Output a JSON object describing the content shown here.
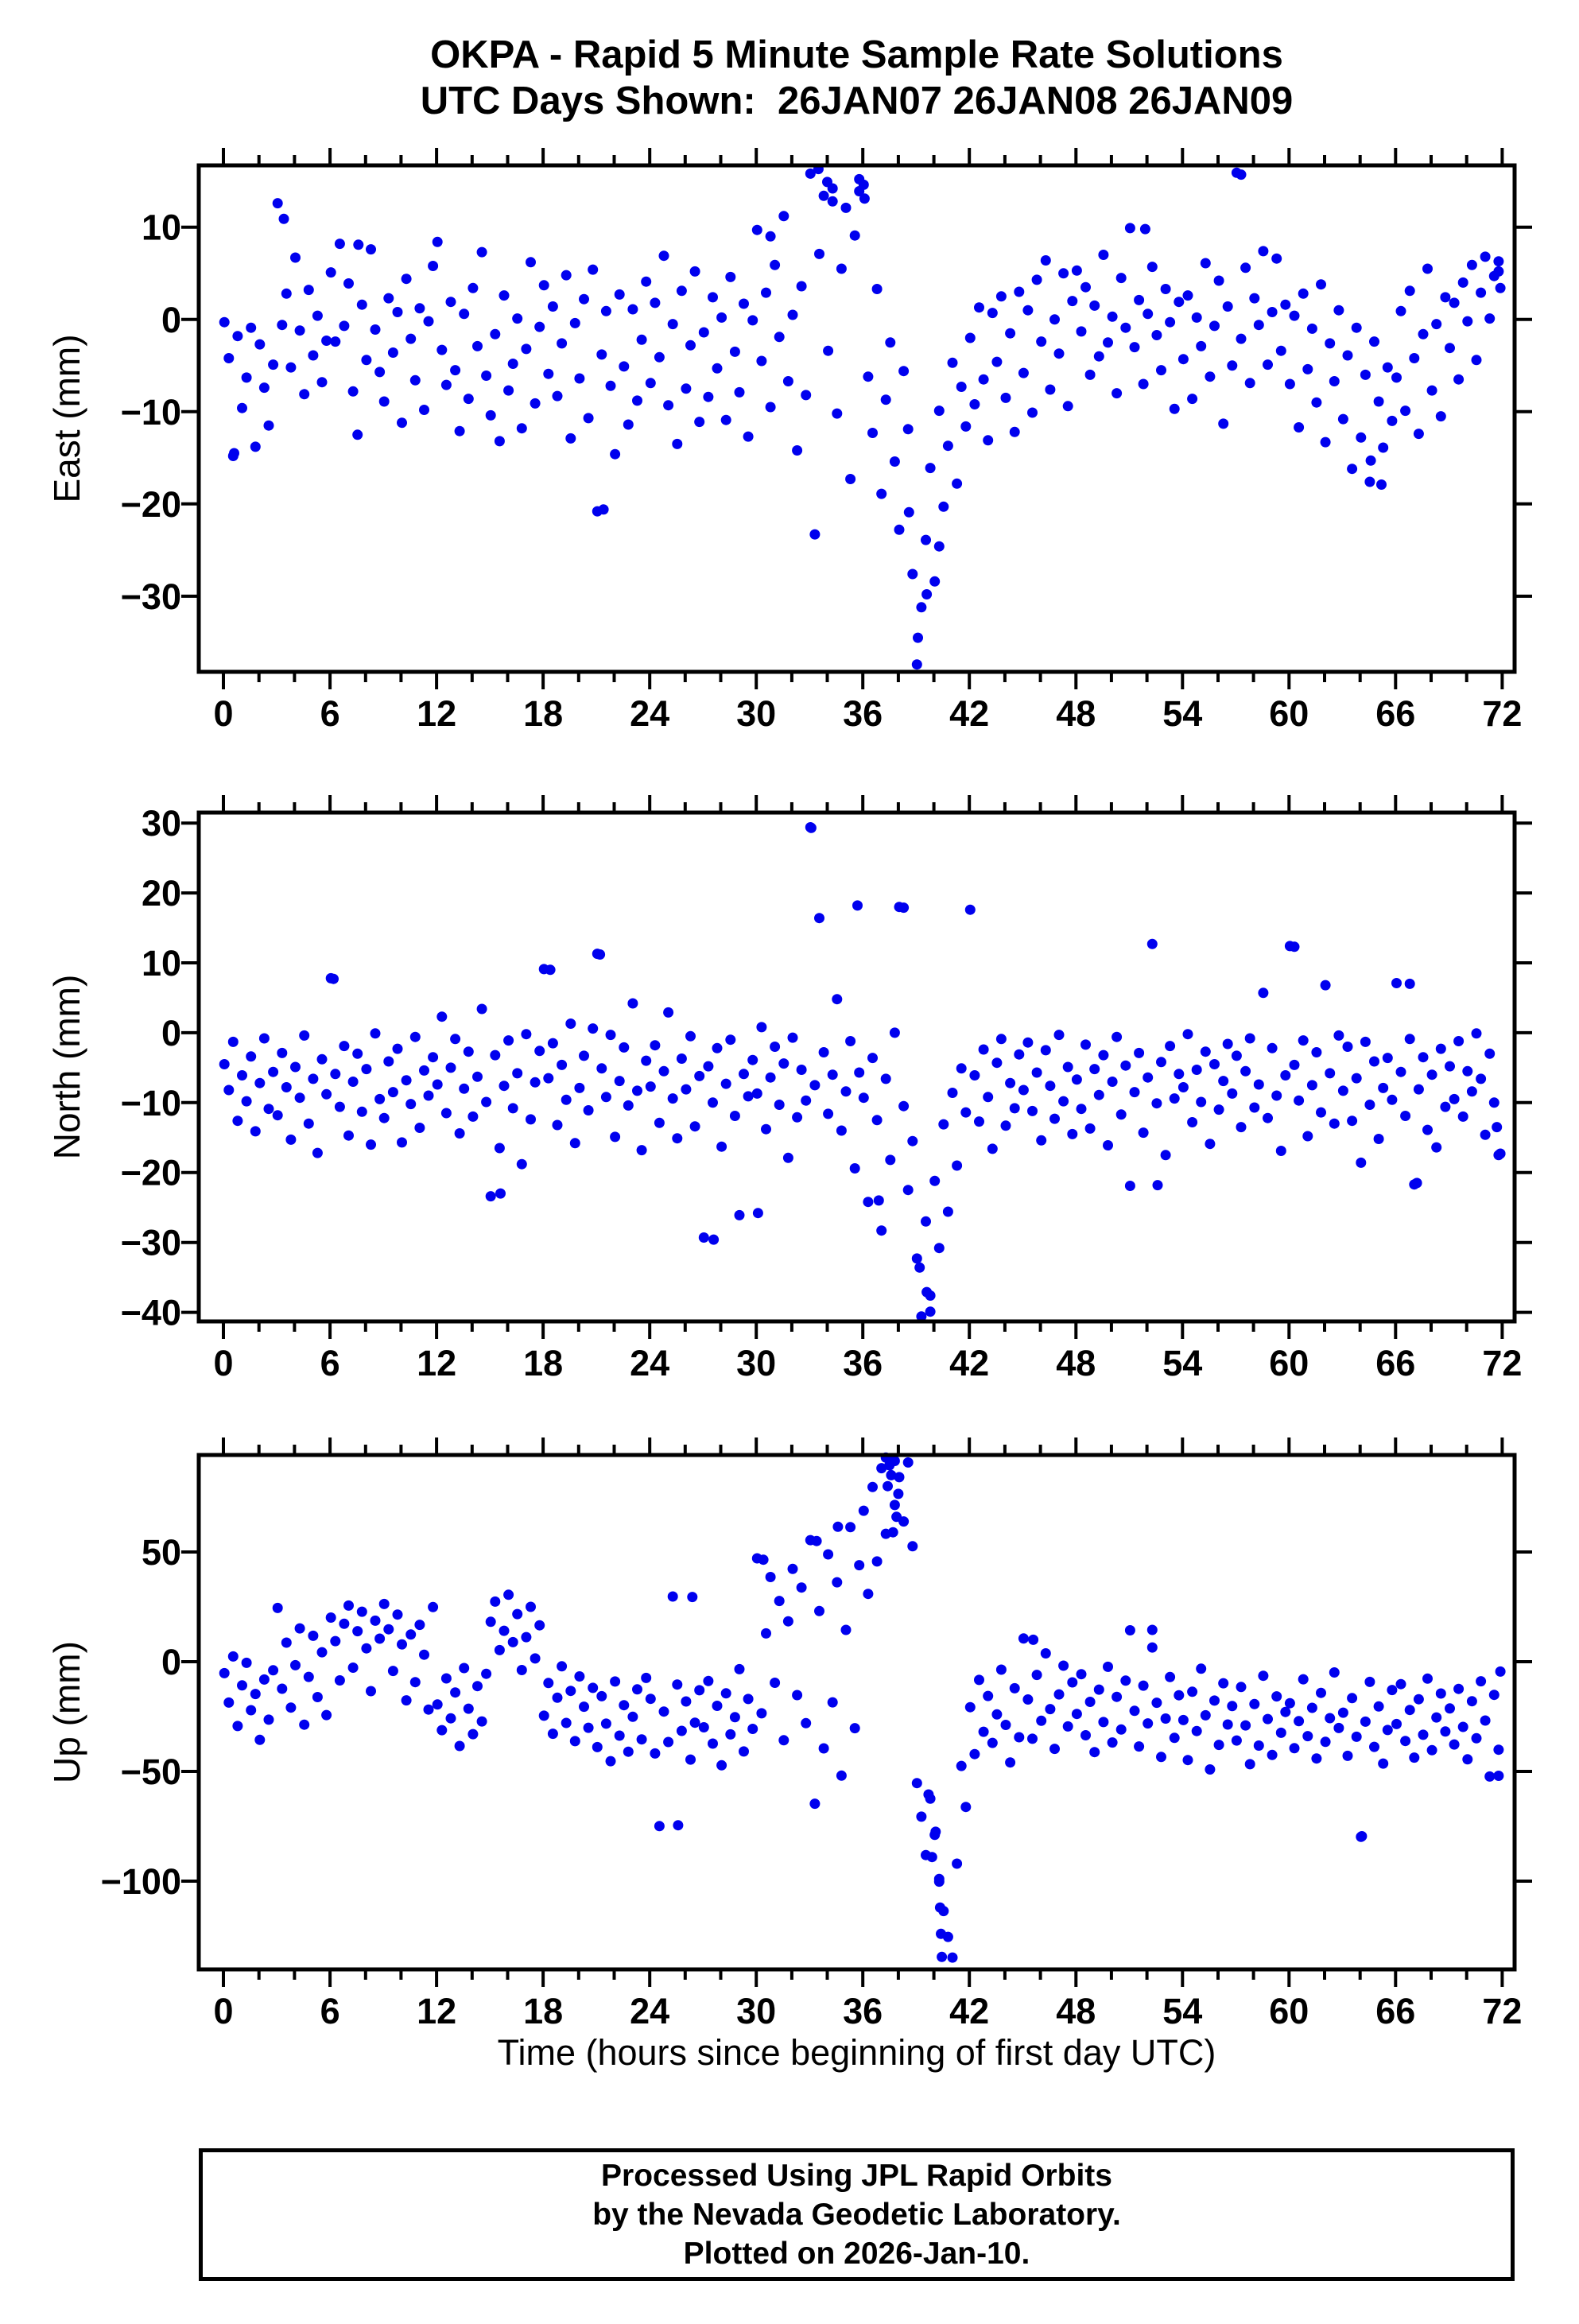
{
  "title": {
    "line1": "OKPA - Rapid 5 Minute Sample Rate Solutions",
    "line2": "UTC Days Shown:  26JAN07 26JAN08 26JAN09"
  },
  "footer": {
    "line1": "Processed Using JPL Rapid Orbits",
    "line2": "by the Nevada Geodetic Laboratory.",
    "line3": "Plotted on 2026-Jan-10."
  },
  "style": {
    "point_color": "#0000EE",
    "frame_color": "#000000",
    "point_radius": 6.5
  },
  "x_axis": {
    "label": "Time (hours since beginning of first day UTC)",
    "ticks": [
      0,
      6,
      12,
      18,
      24,
      30,
      36,
      42,
      48,
      54,
      60,
      66,
      72
    ],
    "tick_labels": [
      "0",
      "6",
      "12",
      "18",
      "24",
      "30",
      "36",
      "42",
      "48",
      "54",
      "60",
      "66",
      "72"
    ],
    "minor_step": 2,
    "lim": [
      -1.39,
      72.7
    ]
  },
  "chart_data": [
    {
      "type": "scatter",
      "name": "east",
      "ylabel": "East (mm)",
      "y_ticks": [
        10,
        0,
        -10,
        -20,
        -30
      ],
      "y_tick_labels": [
        "10",
        "0",
        "−10",
        "−20",
        "−30"
      ],
      "ylim": [
        -38.2,
        16.7
      ],
      "x_start": 0.05,
      "x_step": 0.25,
      "y": [
        -0.3,
        -4.2,
        -14.8,
        -1.8,
        -9.6,
        -6.3,
        -0.9,
        -13.8,
        -2.7,
        -7.4,
        -11.5,
        -4.9,
        12.6,
        -0.6,
        2.8,
        -5.2,
        6.7,
        -1.2,
        -8.1,
        3.2,
        -3.9,
        0.4,
        -6.8,
        -2.3,
        5.1,
        -2.4,
        8.2,
        -0.7,
        3.9,
        -7.8,
        -12.5,
        1.6,
        -4.4,
        7.6,
        -1.1,
        -5.7,
        -8.9,
        2.3,
        -3.6,
        0.8,
        -11.2,
        4.4,
        -2.1,
        -6.6,
        1.2,
        -9.8,
        -0.2,
        5.8,
        8.4,
        -3.3,
        -7.1,
        1.9,
        -5.5,
        -12.1,
        0.6,
        -8.6,
        3.4,
        -2.9,
        7.3,
        -6.1,
        -10.4,
        -1.6,
        -13.2,
        2.6,
        -7.7,
        -4.8,
        0.1,
        -11.8,
        -3.2,
        6.2,
        -9.1,
        -0.8,
        3.7,
        -5.9,
        1.4,
        -8.3,
        -2.6,
        4.8,
        -12.9,
        -0.4,
        -6.4,
        2.2,
        -10.7,
        5.4,
        -20.8,
        -3.8,
        0.9,
        -7.2,
        -14.6,
        2.7,
        -5.1,
        -11.4,
        1.1,
        -8.8,
        -2.2,
        4.1,
        -6.9,
        1.8,
        -4.1,
        6.9,
        -9.3,
        -0.5,
        -13.5,
        3.1,
        -7.5,
        -2.8,
        5.2,
        -11.1,
        -1.4,
        -8.4,
        2.4,
        -5.3,
        0.2,
        -10.9,
        4.6,
        -3.5,
        -7.9,
        1.7,
        -12.7,
        -0.1,
        9.7,
        -4.5,
        2.9,
        -9.5,
        5.9,
        -1.9,
        11.2,
        -6.7,
        0.5,
        -14.2,
        3.6,
        -8.2,
        15.8,
        -23.3,
        7.1,
        13.4,
        -3.4,
        14.2,
        -10.2,
        5.5,
        12.1,
        -17.3,
        9.1,
        13.9,
        14.6,
        -6.2,
        -12.3,
        3.3,
        -18.9,
        -8.7,
        -2.5,
        -15.4,
        -22.8,
        -5.6,
        -11.9,
        -27.6,
        -37.4,
        -31.2,
        -23.9,
        -16.1,
        -28.4,
        -9.9,
        -20.3,
        -13.7,
        -4.7,
        -17.8,
        -7.3,
        -11.6,
        -2.0,
        -9.2,
        1.3,
        -6.5,
        -13.1,
        0.7,
        -4.6,
        2.5,
        -8.5,
        -1.5,
        -12.2,
        3.0,
        -5.8,
        1.0,
        -10.1,
        4.3,
        -2.4,
        6.4,
        -7.6,
        0.0,
        -3.7,
        5.0,
        -9.4,
        2.0,
        5.3,
        -1.3,
        3.5,
        -6.0,
        1.5,
        -4.0,
        7.0,
        -2.5,
        0.3,
        -8.0,
        4.5,
        -0.9,
        9.9,
        -3.0,
        2.1,
        -7.0,
        0.6,
        5.7,
        -1.7,
        -5.5,
        3.3,
        -0.3,
        -9.7,
        1.9,
        -4.3,
        2.6,
        -8.6,
        0.2,
        -2.9,
        6.1,
        -6.2,
        -0.7,
        4.2,
        -11.3,
        1.4,
        -5.0,
        15.9,
        -2.1,
        5.6,
        -6.9,
        2.3,
        -0.6,
        7.4,
        -4.9,
        0.8,
        6.6,
        -3.4,
        1.6,
        -7.0,
        0.4,
        -11.7,
        2.8,
        -5.4,
        -1.0,
        -9.0,
        3.8,
        -13.3,
        -2.6,
        -6.7,
        1.0,
        -10.8,
        -3.9,
        -16.2,
        -0.9,
        -12.8,
        -6.0,
        -17.6,
        -2.4,
        -8.9,
        -13.9,
        -5.2,
        -11.0,
        -6.3,
        0.9,
        -9.9,
        3.1,
        -4.2,
        -12.4,
        -1.6,
        5.5,
        -7.7,
        -0.5,
        -10.5,
        2.4,
        -3.1,
        1.8,
        -6.5,
        4.0,
        -0.2,
        5.9,
        -4.4,
        2.9,
        6.8,
        0.1,
        4.7,
        5.2
      ],
      "extra_points": [
        [
          33.5,
          16.3
        ],
        [
          34.0,
          14.9
        ],
        [
          34.3,
          12.8
        ],
        [
          35.8,
          15.2
        ],
        [
          36.1,
          13.1
        ],
        [
          3.4,
          10.9
        ],
        [
          7.6,
          8.1
        ],
        [
          57.3,
          15.7
        ],
        [
          39.1,
          -34.5
        ],
        [
          39.6,
          -29.8
        ],
        [
          40.3,
          -24.6
        ],
        [
          38.6,
          -20.9
        ],
        [
          21.4,
          -20.6
        ],
        [
          65.2,
          -17.9
        ],
        [
          64.6,
          -15.3
        ],
        [
          71.8,
          6.3
        ],
        [
          71.9,
          3.4
        ],
        [
          30.8,
          9.0
        ],
        [
          51.9,
          9.8
        ],
        [
          0.6,
          -14.5
        ]
      ]
    },
    {
      "type": "scatter",
      "name": "north",
      "ylabel": "North (mm)",
      "y_ticks": [
        30,
        20,
        10,
        0,
        -10,
        -20,
        -30,
        -40
      ],
      "y_tick_labels": [
        "30",
        "20",
        "10",
        "0",
        "−10",
        "−20",
        "−30",
        "−40"
      ],
      "ylim": [
        -41.3,
        31.5
      ],
      "x_start": 0.05,
      "x_step": 0.25,
      "y": [
        -4.5,
        -8.2,
        -1.3,
        -12.6,
        -6.1,
        -9.8,
        -3.4,
        -14.1,
        -7.2,
        -0.8,
        -10.9,
        -5.6,
        -11.8,
        -2.9,
        -7.8,
        -15.3,
        -4.9,
        -9.3,
        -0.4,
        -13.0,
        -6.6,
        -17.2,
        -3.8,
        -8.8,
        7.8,
        -5.9,
        -10.6,
        -1.9,
        -14.7,
        -7.0,
        -3.0,
        -11.3,
        -5.2,
        -16.0,
        -0.1,
        -9.5,
        -12.2,
        -4.1,
        -8.5,
        -2.3,
        -15.7,
        -6.8,
        -10.2,
        -0.6,
        -13.6,
        -5.4,
        -9.0,
        -3.5,
        -7.4,
        2.3,
        -11.5,
        -5.0,
        -0.9,
        -14.4,
        -8.0,
        -2.7,
        -12.0,
        -6.3,
        3.4,
        -9.9,
        -23.4,
        -3.2,
        -16.5,
        -7.6,
        -1.1,
        -10.8,
        -5.8,
        -18.8,
        -0.2,
        -12.4,
        -7.1,
        -2.6,
        9.1,
        -6.5,
        -1.5,
        -13.2,
        -4.6,
        -9.6,
        1.3,
        -15.8,
        -7.9,
        -3.3,
        -11.1,
        0.6,
        11.3,
        -5.1,
        -9.2,
        -0.3,
        -14.9,
        -6.9,
        -2.1,
        -10.4,
        4.2,
        -8.3,
        -16.8,
        -4.0,
        -7.7,
        -1.8,
        -12.9,
        -5.5,
        2.9,
        -9.4,
        -15.1,
        -3.7,
        -8.1,
        -0.5,
        -13.4,
        -6.2,
        -29.3,
        -4.8,
        -10.0,
        -2.2,
        -16.3,
        -7.3,
        -1.0,
        -11.9,
        -26.1,
        -5.9,
        -9.1,
        -3.9,
        -8.7,
        0.8,
        -13.8,
        -6.4,
        -2.0,
        -10.3,
        -4.4,
        -17.9,
        -0.7,
        -12.1,
        -5.3,
        -9.7,
        29.4,
        -7.5,
        16.4,
        -2.8,
        -11.6,
        -6.0,
        4.8,
        -14.0,
        -8.4,
        -1.2,
        -19.4,
        -5.7,
        -9.3,
        -24.2,
        -3.6,
        -12.5,
        -28.3,
        -6.6,
        -18.2,
        0.0,
        18.0,
        -10.5,
        -22.5,
        -15.5,
        -32.3,
        -40.6,
        -27.0,
        -37.6,
        -21.2,
        -30.8,
        -13.1,
        -25.6,
        -8.6,
        -19.0,
        -5.1,
        -11.4,
        17.6,
        -6.1,
        -12.7,
        -2.4,
        -9.2,
        -16.6,
        -4.3,
        -0.9,
        -13.3,
        -7.2,
        -10.8,
        -3.1,
        -8.2,
        -1.4,
        -11.2,
        -5.7,
        -15.4,
        -2.5,
        -7.6,
        -12.3,
        -0.3,
        -9.8,
        -4.9,
        -14.5,
        -6.7,
        -10.9,
        -1.7,
        -13.7,
        -5.2,
        -8.9,
        -3.2,
        -16.1,
        -7.0,
        -0.6,
        -11.7,
        -4.7,
        -21.9,
        -8.5,
        -2.9,
        -14.3,
        -6.4,
        12.7,
        -10.1,
        -4.2,
        -17.5,
        -1.9,
        -9.4,
        -5.9,
        -7.8,
        -0.2,
        -12.8,
        -5.3,
        -9.9,
        -2.7,
        -15.9,
        -4.5,
        -11.0,
        -6.9,
        -1.6,
        -8.7,
        -3.3,
        -13.5,
        -5.5,
        -0.8,
        -10.7,
        -7.4,
        5.7,
        -12.2,
        -2.2,
        -9.0,
        -16.9,
        -6.1,
        12.4,
        -4.6,
        -9.7,
        -1.1,
        -14.8,
        -7.5,
        -2.8,
        -11.4,
        6.8,
        -5.8,
        -13.0,
        -0.4,
        -8.3,
        -2.0,
        -12.6,
        -6.5,
        -18.6,
        -1.3,
        -10.3,
        -4.1,
        -15.2,
        -7.9,
        -3.6,
        -9.6,
        7.1,
        -5.6,
        -11.9,
        -0.9,
        -21.7,
        -8.1,
        -3.5,
        -13.9,
        -6.0,
        -16.4,
        -2.3,
        -10.6,
        -4.8,
        -9.5,
        -1.2,
        -12.0,
        -5.5,
        -8.4,
        -0.1,
        -6.6,
        -14.6,
        -3.0,
        -10.0,
        -17.5
      ],
      "extra_points": [
        [
          33.1,
          29.3
        ],
        [
          38.3,
          17.9
        ],
        [
          35.7,
          18.2
        ],
        [
          39.8,
          -39.9
        ],
        [
          39.6,
          -37.1
        ],
        [
          39.2,
          -33.6
        ],
        [
          15.6,
          -23.0
        ],
        [
          27.6,
          -29.6
        ],
        [
          30.1,
          -25.8
        ],
        [
          21.2,
          11.2
        ],
        [
          18.4,
          9.0
        ],
        [
          60.3,
          12.3
        ],
        [
          52.6,
          -21.8
        ],
        [
          66.8,
          7.0
        ],
        [
          67.2,
          -21.5
        ],
        [
          6.2,
          7.7
        ],
        [
          36.9,
          -24.0
        ],
        [
          71.7,
          -13.5
        ],
        [
          71.9,
          -17.3
        ]
      ]
    },
    {
      "type": "scatter",
      "name": "up",
      "ylabel": "Up (mm)",
      "y_ticks": [
        50,
        0,
        -50,
        -100
      ],
      "y_tick_labels": [
        "50",
        "0",
        "−50",
        "−100"
      ],
      "ylim": [
        -140.2,
        94.2
      ],
      "x_start": 0.05,
      "x_step": 0.25,
      "y": [
        -5.2,
        -18.6,
        2.4,
        -29.3,
        -10.8,
        -0.5,
        -22.1,
        -14.7,
        -35.6,
        -8.1,
        -26.4,
        -3.9,
        24.5,
        -12.3,
        8.7,
        -20.9,
        -1.6,
        15.2,
        -28.7,
        -6.9,
        11.8,
        -16.1,
        4.3,
        -24.3,
        20.1,
        9.4,
        -8.5,
        17.3,
        25.6,
        -2.7,
        13.9,
        22.8,
        6.1,
        -13.4,
        18.7,
        10.5,
        26.3,
        14.8,
        -4.2,
        21.5,
        7.9,
        -17.6,
        12.4,
        -9.3,
        16.8,
        3.2,
        -21.8,
        24.9,
        -19.5,
        -31.2,
        -7.6,
        -25.8,
        -14.0,
        -38.4,
        -2.9,
        -21.4,
        -33.0,
        -11.1,
        -27.2,
        -5.5,
        18.2,
        27.4,
        5.3,
        14.1,
        30.5,
        8.9,
        21.7,
        -3.8,
        11.2,
        25.0,
        1.5,
        16.6,
        -24.6,
        -9.7,
        -32.8,
        -16.4,
        -2.1,
        -27.9,
        -13.3,
        -36.2,
        -6.7,
        -20.5,
        -30.1,
        -11.9,
        -38.9,
        -15.7,
        -28.2,
        -45.3,
        -9.0,
        -33.7,
        -19.8,
        -41.0,
        -25.1,
        -12.6,
        -35.4,
        -7.4,
        -16.9,
        -41.8,
        -74.9,
        -22.7,
        -36.6,
        29.7,
        -10.4,
        -31.5,
        -18.1,
        -44.6,
        -27.8,
        -13.0,
        -29.9,
        -8.8,
        -37.3,
        -20.1,
        -47.2,
        -14.4,
        -33.1,
        -25.3,
        -3.4,
        -40.9,
        -17.0,
        -30.6,
        47.1,
        -23.5,
        12.9,
        38.6,
        -9.6,
        27.7,
        -35.8,
        18.4,
        42.3,
        -15.2,
        33.8,
        -28.0,
        55.4,
        -64.7,
        23.1,
        -39.5,
        48.9,
        -18.5,
        36.2,
        -51.9,
        14.5,
        61.3,
        -30.3,
        44.0,
        68.8,
        30.9,
        79.6,
        45.7,
        88.2,
        58.3,
        92.5,
        71.4,
        84.1,
        63.9,
        90.8,
        52.6,
        -55.3,
        -70.6,
        -88.1,
        -62.4,
        -78.9,
        -100.2,
        -113.6,
        -125.4,
        -134.8,
        -92.0,
        -47.5,
        -66.2,
        -20.7,
        -42.1,
        -8.3,
        -31.9,
        -15.6,
        -37.0,
        -24.0,
        -3.6,
        -28.8,
        -45.9,
        -12.1,
        -34.4,
        10.6,
        -17.2,
        -35.1,
        -6.0,
        -26.9,
        3.8,
        -21.6,
        -39.7,
        -14.9,
        -1.8,
        -29.5,
        -9.4,
        -23.8,
        -5.7,
        -33.5,
        -18.3,
        -41.2,
        -12.7,
        -27.5,
        -2.3,
        -36.8,
        -16.0,
        -30.9,
        -8.6,
        14.3,
        -22.4,
        -38.6,
        -10.9,
        -28.1,
        6.5,
        -18.7,
        -43.4,
        -25.9,
        -7.0,
        -34.7,
        -15.3,
        -26.6,
        -44.8,
        -13.7,
        -31.6,
        -3.2,
        -24.4,
        -49.1,
        -17.7,
        -37.9,
        -9.8,
        -28.6,
        -20.2,
        -35.9,
        -11.5,
        -29.0,
        -46.7,
        -19.3,
        -38.2,
        -6.4,
        -26.1,
        -42.5,
        -15.8,
        -32.4,
        -22.9,
        -18.9,
        -39.4,
        -27.1,
        -8.0,
        -33.9,
        -21.0,
        -44.1,
        -14.2,
        -36.5,
        -25.7,
        -4.9,
        -30.2,
        -23.2,
        -42.9,
        -16.6,
        -34.2,
        -79.8,
        -27.3,
        -9.2,
        -38.8,
        -20.4,
        -46.4,
        -31.1,
        -12.9,
        -28.4,
        -10.2,
        -36.1,
        -22.0,
        -43.7,
        -17.1,
        -33.3,
        -7.7,
        -40.3,
        -25.4,
        -14.5,
        -31.8,
        -21.3,
        -37.7,
        -12.4,
        -29.7,
        -44.5,
        -18.0,
        -34.9,
        -8.9,
        -26.8,
        -52.3,
        -15.1,
        -40.1
      ],
      "extra_points": [
        [
          37.3,
          93.0
        ],
        [
          37.5,
          89.5
        ],
        [
          37.6,
          85.0
        ],
        [
          37.8,
          91.5
        ],
        [
          37.4,
          80.0
        ],
        [
          38.0,
          76.5
        ],
        [
          37.9,
          66.0
        ],
        [
          37.7,
          59.0
        ],
        [
          40.3,
          -99.0
        ],
        [
          40.35,
          -112.0
        ],
        [
          40.4,
          -124.0
        ],
        [
          40.45,
          -134.5
        ],
        [
          39.9,
          -89.0
        ],
        [
          40.1,
          -77.5
        ],
        [
          39.7,
          -60.5
        ],
        [
          25.6,
          -74.5
        ],
        [
          26.4,
          29.5
        ],
        [
          64.1,
          -79.5
        ],
        [
          33.4,
          55.0
        ],
        [
          34.6,
          61.5
        ],
        [
          30.4,
          46.5
        ],
        [
          52.3,
          14.5
        ],
        [
          45.6,
          10.0
        ],
        [
          71.9,
          -4.5
        ],
        [
          71.8,
          -52.0
        ]
      ]
    }
  ]
}
